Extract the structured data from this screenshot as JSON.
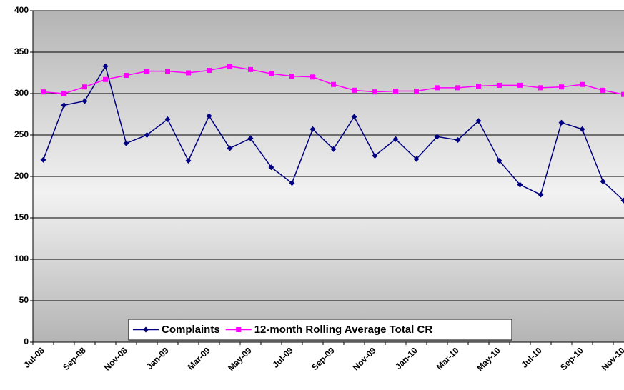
{
  "chart_data": {
    "type": "line",
    "categories": [
      "Jul-08",
      null,
      "Sep-08",
      null,
      "Nov-08",
      null,
      "Jan-09",
      null,
      "Mar-09",
      null,
      "May-09",
      null,
      "Jul-09",
      null,
      "Sep-09",
      null,
      "Nov-09",
      null,
      "Jan-10",
      null,
      "Mar-10",
      null,
      "May-10",
      null,
      "Jul-10",
      null,
      "Sep-10",
      null,
      "Nov-10"
    ],
    "series": [
      {
        "name": "Complaints",
        "color": "#000080",
        "marker": "diamond",
        "values": [
          220,
          286,
          291,
          333,
          240,
          250,
          269,
          219,
          273,
          234,
          246,
          211,
          192,
          257,
          233,
          272,
          225,
          245,
          221,
          248,
          244,
          267,
          219,
          190,
          178,
          265,
          257,
          194,
          171
        ]
      },
      {
        "name": "12-month Rolling Average Total CR",
        "color": "#ff00ff",
        "marker": "square",
        "values": [
          302,
          300,
          308,
          317,
          322,
          327,
          327,
          325,
          328,
          333,
          329,
          324,
          321,
          320,
          311,
          304,
          302,
          303,
          303,
          307,
          307,
          309,
          310,
          310,
          307,
          308,
          311,
          304,
          299
        ]
      }
    ],
    "ylim": [
      0,
      400
    ],
    "yticks": [
      0,
      50,
      100,
      150,
      200,
      250,
      300,
      350,
      400
    ],
    "grid": true,
    "legend": "bottom"
  }
}
